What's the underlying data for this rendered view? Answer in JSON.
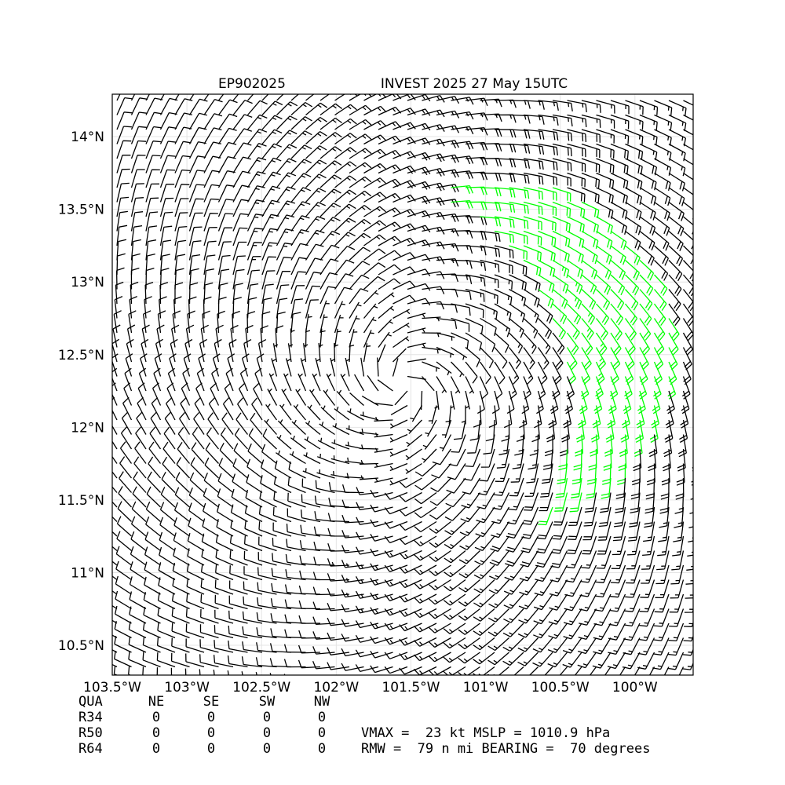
{
  "chart_data": {
    "type": "wind-barbs",
    "title": "EP902025",
    "subtitle": "INVEST 2025 27 May 15UTC",
    "xlim": [
      -103.5,
      -99.61
    ],
    "ylim": [
      10.295,
      14.292
    ],
    "xticks": [
      {
        "value": -103.5,
        "label": "103.5°W"
      },
      {
        "value": -103,
        "label": "103°W"
      },
      {
        "value": -102.5,
        "label": "102.5°W"
      },
      {
        "value": -102,
        "label": "102°W"
      },
      {
        "value": -101.5,
        "label": "101.5°W"
      },
      {
        "value": -101,
        "label": "101°W"
      },
      {
        "value": -100.5,
        "label": "100.5°W"
      },
      {
        "value": -100,
        "label": "100°W"
      }
    ],
    "yticks": [
      {
        "value": 10.5,
        "label": "10.5°N"
      },
      {
        "value": 11,
        "label": "11°N"
      },
      {
        "value": 11.5,
        "label": "11.5°N"
      },
      {
        "value": 12,
        "label": "12°N"
      },
      {
        "value": 12.5,
        "label": "12.5°N"
      },
      {
        "value": 13,
        "label": "13°N"
      },
      {
        "value": 13.5,
        "label": "13.5°N"
      },
      {
        "value": 14,
        "label": "14°N"
      }
    ],
    "grid": true,
    "storm_center": {
      "lon": -101.55,
      "lat": 12.3
    },
    "vmax_kt": 23,
    "rmw_nmi": 79,
    "bearing_deg": 70,
    "barb_color": "#000000",
    "strong_color": "#00ff00",
    "radii_table": {
      "header": [
        "QUA",
        "NE",
        "SE",
        "SW",
        "NW"
      ],
      "rows": [
        [
          "R34",
          0,
          0,
          0,
          0
        ],
        [
          "R50",
          0,
          0,
          0,
          0
        ],
        [
          "R64",
          0,
          0,
          0,
          0
        ]
      ]
    },
    "info": [
      "VMAX =  23 kt MSLP = 1010.9 hPa",
      "RMW =  79 n mi BEARING =  70 degrees"
    ]
  }
}
